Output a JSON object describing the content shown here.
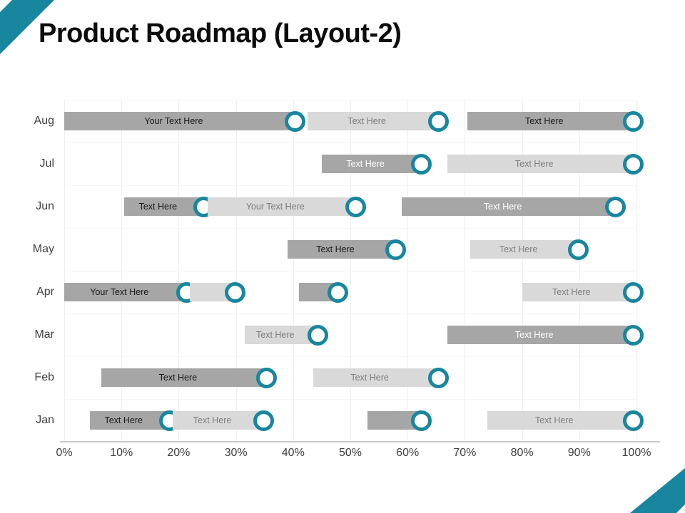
{
  "colors": {
    "teal": "#17869e",
    "dark_bar": "#a6a6a6",
    "light_bar": "#d9d9d9",
    "label_dark": "#1a1a1a",
    "label_gray": "#7f7f7f",
    "label_white": "#ffffff",
    "axis_text": "#3f3f3f",
    "axis_line": "#c9c9c9",
    "gridline": "#efefef"
  },
  "chart_data": {
    "type": "bar",
    "subtype": "horizontal-gantt-roadmap",
    "title": "Product Roadmap (Layout-2)",
    "categories": [
      "Aug",
      "Jul",
      "Jun",
      "May",
      "Apr",
      "Mar",
      "Feb",
      "Jan"
    ],
    "x_ticks": [
      "0%",
      "10%",
      "20%",
      "30%",
      "40%",
      "50%",
      "60%",
      "70%",
      "80%",
      "90%",
      "100%"
    ],
    "x_range": [
      0,
      100
    ],
    "grid": true,
    "legend": false,
    "rows": [
      {
        "month": "Aug",
        "bars": [
          {
            "start": 0,
            "end": 41,
            "shade": "dark",
            "label": "Your Text Here",
            "label_style": "dark",
            "ring": true
          },
          {
            "start": 42.5,
            "end": 66,
            "shade": "light",
            "label": "Text Here",
            "label_style": "gray",
            "ring": true
          },
          {
            "start": 70.5,
            "end": 100,
            "shade": "dark",
            "label": "Text Here",
            "label_style": "dark",
            "ring": true
          }
        ]
      },
      {
        "month": "Jul",
        "bars": [
          {
            "start": 45,
            "end": 63,
            "shade": "dark",
            "label": "Text Here",
            "label_style": "white",
            "ring": true
          },
          {
            "start": 67,
            "end": 100,
            "shade": "light",
            "label": "Text Here",
            "label_style": "gray",
            "ring": true
          }
        ]
      },
      {
        "month": "Jun",
        "bars": [
          {
            "start": 10.5,
            "end": 25,
            "shade": "dark",
            "label": "Text Here",
            "label_style": "dark",
            "ring": true
          },
          {
            "start": 25,
            "end": 51.5,
            "shade": "light",
            "label": "Your Text Here",
            "label_style": "gray",
            "ring": true
          },
          {
            "start": 59,
            "end": 97,
            "shade": "dark",
            "label": "Text Here",
            "label_style": "white",
            "ring": true
          }
        ]
      },
      {
        "month": "May",
        "bars": [
          {
            "start": 39,
            "end": 58.5,
            "shade": "dark",
            "label": "Text Here",
            "label_style": "dark",
            "ring": true
          },
          {
            "start": 71,
            "end": 90.5,
            "shade": "light",
            "label": "Text Here",
            "label_style": "gray",
            "ring": true
          }
        ]
      },
      {
        "month": "Apr",
        "bars": [
          {
            "start": 0,
            "end": 22,
            "shade": "dark",
            "label": "Your Text Here",
            "label_style": "dark",
            "ring": true
          },
          {
            "start": 22,
            "end": 30.5,
            "shade": "light",
            "label": "",
            "label_style": "gray",
            "ring": true
          },
          {
            "start": 41,
            "end": 48.5,
            "shade": "dark",
            "label": "",
            "label_style": "dark",
            "ring": true
          },
          {
            "start": 80,
            "end": 100,
            "shade": "light",
            "label": "Text Here",
            "label_style": "gray",
            "ring": true
          }
        ]
      },
      {
        "month": "Mar",
        "bars": [
          {
            "start": 31.5,
            "end": 45,
            "shade": "light",
            "label": "Text Here",
            "label_style": "gray",
            "ring": true
          },
          {
            "start": 67,
            "end": 100,
            "shade": "dark",
            "label": "Text Here",
            "label_style": "white",
            "ring": true
          }
        ]
      },
      {
        "month": "Feb",
        "bars": [
          {
            "start": 6.5,
            "end": 36,
            "shade": "dark",
            "label": "Text Here",
            "label_style": "dark",
            "ring": true
          },
          {
            "start": 43.5,
            "end": 66,
            "shade": "light",
            "label": "Text Here",
            "label_style": "gray",
            "ring": true
          }
        ]
      },
      {
        "month": "Jan",
        "bars": [
          {
            "start": 4.5,
            "end": 19,
            "shade": "dark",
            "label": "Text Here",
            "label_style": "dark",
            "ring": true
          },
          {
            "start": 19,
            "end": 35.5,
            "shade": "light",
            "label": "Text Here",
            "label_style": "gray",
            "ring": true
          },
          {
            "start": 53,
            "end": 63,
            "shade": "dark",
            "label": "",
            "label_style": "dark",
            "ring": true
          },
          {
            "start": 74,
            "end": 100,
            "shade": "light",
            "label": "Text Here",
            "label_style": "gray",
            "ring": true
          }
        ]
      }
    ]
  }
}
